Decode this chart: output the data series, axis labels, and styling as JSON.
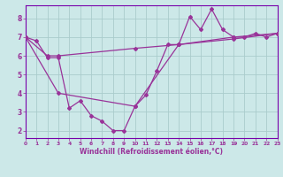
{
  "xlabel": "Windchill (Refroidissement éolien,°C)",
  "bg_color": "#cce8e8",
  "plot_bg_color": "#cce8e8",
  "grid_color": "#aacccc",
  "line_color": "#993399",
  "spine_color": "#7700aa",
  "tick_color": "#993399",
  "label_color": "#993399",
  "xlim": [
    0,
    23
  ],
  "ylim": [
    1.6,
    8.7
  ],
  "yticks": [
    2,
    3,
    4,
    5,
    6,
    7,
    8
  ],
  "xticks": [
    0,
    1,
    2,
    3,
    4,
    5,
    6,
    7,
    8,
    9,
    10,
    11,
    12,
    13,
    14,
    15,
    16,
    17,
    18,
    19,
    20,
    21,
    22,
    23
  ],
  "line1_x": [
    0,
    1,
    2,
    3,
    4,
    5,
    6,
    7,
    8,
    9,
    10,
    11,
    12,
    13,
    14,
    15,
    16,
    17,
    18,
    19,
    20,
    21,
    22,
    23
  ],
  "line1_y": [
    7.0,
    6.8,
    5.9,
    5.9,
    3.2,
    3.6,
    2.8,
    2.5,
    2.0,
    2.0,
    3.3,
    3.9,
    5.2,
    6.6,
    6.6,
    8.1,
    7.4,
    8.5,
    7.4,
    7.0,
    7.0,
    7.2,
    7.0,
    7.2
  ],
  "line2_x": [
    0,
    2,
    3,
    10,
    14,
    19,
    23
  ],
  "line2_y": [
    7.0,
    6.0,
    6.0,
    6.4,
    6.6,
    7.0,
    7.2
  ],
  "line3_x": [
    0,
    3,
    10,
    14,
    19,
    23
  ],
  "line3_y": [
    7.0,
    4.0,
    3.3,
    6.6,
    6.9,
    7.2
  ]
}
